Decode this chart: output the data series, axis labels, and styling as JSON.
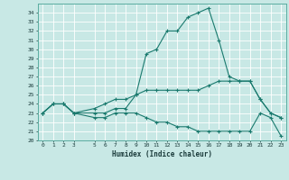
{
  "xlabel": "Humidex (Indice chaleur)",
  "ylabel": "",
  "xlim": [
    -0.5,
    23.5
  ],
  "ylim": [
    20,
    35
  ],
  "yticks": [
    20,
    21,
    22,
    23,
    24,
    25,
    26,
    27,
    28,
    29,
    30,
    31,
    32,
    33,
    34
  ],
  "xticks": [
    0,
    1,
    2,
    3,
    5,
    6,
    7,
    8,
    9,
    10,
    11,
    12,
    13,
    14,
    15,
    16,
    17,
    18,
    19,
    20,
    21,
    22,
    23
  ],
  "background_color": "#c8e8e5",
  "grid_color": "#b0d8d5",
  "line_color": "#1a7a6e",
  "series1": {
    "x": [
      0,
      1,
      2,
      3,
      5,
      6,
      7,
      8,
      9,
      10,
      11,
      12,
      13,
      14,
      15,
      16,
      17,
      18,
      19,
      20,
      21,
      22,
      23
    ],
    "y": [
      23,
      24,
      24,
      23,
      23,
      23,
      23.5,
      23.5,
      25,
      29.5,
      30,
      32,
      32,
      33.5,
      34,
      34.5,
      31,
      27,
      26.5,
      26.5,
      24.5,
      23,
      22.5
    ]
  },
  "series2": {
    "x": [
      0,
      1,
      2,
      3,
      5,
      6,
      7,
      8,
      9,
      10,
      11,
      12,
      13,
      14,
      15,
      16,
      17,
      18,
      19,
      20,
      21,
      22,
      23
    ],
    "y": [
      23,
      24,
      24,
      23,
      23.5,
      24,
      24.5,
      24.5,
      25,
      25.5,
      25.5,
      25.5,
      25.5,
      25.5,
      25.5,
      26,
      26.5,
      26.5,
      26.5,
      26.5,
      24.5,
      23,
      22.5
    ]
  },
  "series3": {
    "x": [
      0,
      1,
      2,
      3,
      5,
      6,
      7,
      8,
      9,
      10,
      11,
      12,
      13,
      14,
      15,
      16,
      17,
      18,
      19,
      20,
      21,
      22,
      23
    ],
    "y": [
      23,
      24,
      24,
      23,
      22.5,
      22.5,
      23,
      23,
      23,
      22.5,
      22,
      22,
      21.5,
      21.5,
      21,
      21,
      21,
      21,
      21,
      21,
      23,
      22.5,
      20.5
    ]
  }
}
